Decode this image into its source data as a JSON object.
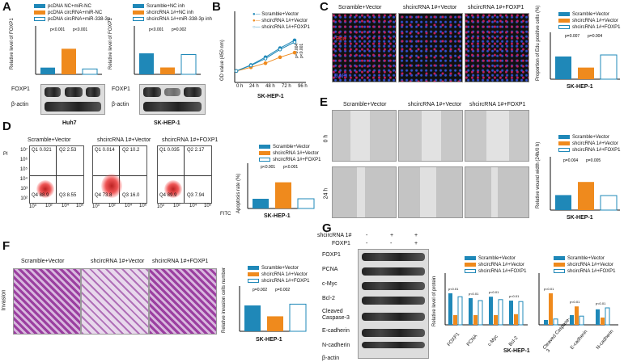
{
  "panel_labels": {
    "A": "A",
    "B": "B",
    "C": "C",
    "D": "D",
    "E": "E",
    "F": "F",
    "G": "G"
  },
  "colors": {
    "blue": "#1f88b8",
    "orange": "#ef8a1d",
    "white": "#ffffff",
    "dark": "#111111",
    "red": "#d62728"
  },
  "panelA": {
    "left": {
      "legend": [
        "pcDNA NC+miR-NC",
        "pcDNA circRNA+miR-NC",
        "pcDNA circRNA+miR-338-3p"
      ],
      "ylabel": "Relative level of FOXP1",
      "sig1": "p<0.001",
      "sig2": "p<0.001",
      "blots": [
        "FOXP1",
        "β-actin"
      ],
      "cell": "Huh7"
    },
    "right": {
      "legend": [
        "Scramble+NC inh",
        "shcircRNA 1#+NC inh",
        "shcircRNA 1#+miR-338-3p inh"
      ],
      "ylabel": "Relative level of FOXP1",
      "sig1": "p<0.001",
      "sig2": "p=0.002",
      "blots": [
        "FOXP1",
        "β-actin"
      ],
      "cell": "SK-HEP-1"
    }
  },
  "panelB": {
    "legend": [
      "Scramble+Vector",
      "shcircRNA 1#+Vector",
      "shcircRNA 1#+FOXP1"
    ],
    "ylabel": "OD value (450 nm)",
    "cell": "SK-HEP-1",
    "sig1": "p=0.004",
    "sig2": "p<0.001"
  },
  "panelC": {
    "groups": [
      "Scramble+Vector",
      "shcircRNA 1#+Vector",
      "shcircRNA 1#+FOXP1"
    ],
    "edu": "Edu",
    "dapi": "DAPI",
    "legend": [
      "Scramble+Vector",
      "shcircRNA 1#+Vector",
      "shcircRNA 1#+FOXP1"
    ],
    "ylabel": "Proportion of Edu positive cells (%)",
    "sig1": "p=0.007",
    "sig2": "p=0.004",
    "cell": "SK-HEP-1"
  },
  "panelD": {
    "groups": [
      "Scramble+Vector",
      "shcircRNA 1#+Vector",
      "shcircRNA 1#+FOXP1"
    ],
    "quads": [
      {
        "q1": "Q1 0.021",
        "q2": "Q2 2.53",
        "q3": "Q3 8.55",
        "q4": "Q4 88.9"
      },
      {
        "q1": "Q1 0.014",
        "q2": "Q2 10.2",
        "q3": "Q3 16.0",
        "q4": "Q4 73.8"
      },
      {
        "q1": "Q1 0.035",
        "q2": "Q2 2.17",
        "q3": "Q3 7.94",
        "q4": "Q4 89.9"
      }
    ],
    "yaxis": "PI",
    "xaxis": "FITC",
    "yticks": [
      "10⁷",
      "10⁶",
      "10⁵",
      "10⁴",
      "10³",
      "10²"
    ],
    "xticks": [
      "10⁰",
      "10²",
      "10⁴",
      "10⁶"
    ],
    "legend": [
      "Scramble+Vector",
      "shcircRNA 1#+Vector",
      "shcircRNA 1#+FOXP1"
    ],
    "ylabel": "Apoptosis rate (%)",
    "sig1": "p<0.001",
    "sig2": "p<0.001",
    "cell": "SK-HEP-1"
  },
  "panelE": {
    "groups": [
      "Scramble+Vector",
      "shcircRNA 1#+Vector",
      "shcircRNA 1#+FOXP1"
    ],
    "rows": [
      "0 h",
      "24 h"
    ],
    "legend": [
      "Scramble+Vector",
      "shcircRNA 1#+Vector",
      "shcircRNA 1#+FOXP1"
    ],
    "ylabel": "Relative wound width (24h/0 h)",
    "sig1": "p=0.004",
    "sig2": "p=0.005",
    "cell": "SK-HEP-1"
  },
  "panelF": {
    "groups": [
      "Scramble+Vector",
      "shcircRNA 1#+Vector",
      "shcircRNA 1#+FOXP1"
    ],
    "row": "Invasion",
    "legend": [
      "Scramble+Vector",
      "shcircRNA 1#+Vector",
      "shcircRNA 1#+FOXP1"
    ],
    "ylabel": "Relative invasion cells number",
    "sig1": "p=0.002",
    "sig2": "p=0.002",
    "cell": "SK-HEP-1"
  },
  "panelG": {
    "header": {
      "row1": "shcircRNA 1#",
      "row2": "FOXP1",
      "signs1": [
        "-",
        "+",
        "+"
      ],
      "signs2": [
        "-",
        "-",
        "+"
      ]
    },
    "blots": [
      "FOXP1",
      "PCNA",
      "c-Myc",
      "Bcl-2",
      "Cleaved Caspase-3",
      "E-cadherin",
      "N-cadherin",
      "β-actin"
    ],
    "legend": [
      "Scramble+Vector",
      "shcircRNA 1#+Vector",
      "shcircRNA 1#+FOXP1"
    ],
    "ylabel": "Relative level of protein",
    "cell": "SK-HEP-1",
    "left_cats": [
      "FOXP1",
      "PCNA",
      "c-Myc",
      "Bcl-2"
    ],
    "right_cats": [
      "Cleaved Caspase-3",
      "E-cadherin",
      "N-cadherin"
    ],
    "sigs": [
      "p<0.01",
      "p<0.01",
      "p<0.01",
      "p<0.01",
      "p<0.01",
      "p<0.01",
      "p<0.01",
      "p<0.01"
    ]
  },
  "chart_data": [
    {
      "type": "bar",
      "title": "",
      "ylabel": "Relative level of FOXP1",
      "categories": [
        "pcDNA NC+miR-NC",
        "pcDNA circRNA+miR-NC",
        "pcDNA circRNA+miR-338-3p"
      ],
      "values": [
        0.25,
        0.95,
        0.2
      ],
      "ylim": [
        0,
        1.5
      ]
    },
    {
      "type": "bar",
      "ylabel": "Relative level of FOXP1",
      "categories": [
        "Scramble+NC inh",
        "shcircRNA 1#+NC inh",
        "shcircRNA 1#+miR-338-3p inh"
      ],
      "values": [
        0.52,
        0.17,
        0.49
      ],
      "ylim": [
        0,
        1.0
      ]
    },
    {
      "type": "line",
      "ylabel": "OD value (450 nm)",
      "x": [
        "0 h",
        "24 h",
        "48 h",
        "72 h",
        "96 h"
      ],
      "ylim": [
        0,
        1.5
      ],
      "series": [
        {
          "name": "Scramble+Vector",
          "values": [
            0.25,
            0.38,
            0.55,
            0.75,
            0.92
          ]
        },
        {
          "name": "shcircRNA 1#+Vector",
          "values": [
            0.25,
            0.33,
            0.42,
            0.55,
            0.65
          ]
        },
        {
          "name": "shcircRNA 1#+FOXP1",
          "values": [
            0.25,
            0.37,
            0.52,
            0.72,
            0.88
          ]
        }
      ]
    },
    {
      "type": "bar",
      "ylabel": "Proportion of Edu positive cells (%)",
      "categories": [
        "Scramble+Vector",
        "shcircRNA 1#+Vector",
        "shcircRNA 1#+FOXP1"
      ],
      "values": [
        45,
        23,
        48
      ],
      "ylim": [
        0,
        80
      ]
    },
    {
      "type": "bar",
      "ylabel": "Apoptosis rate (%)",
      "categories": [
        "Scramble+Vector",
        "shcircRNA 1#+Vector",
        "shcircRNA 1#+FOXP1"
      ],
      "values": [
        10,
        27,
        10
      ],
      "ylim": [
        0,
        40
      ]
    },
    {
      "type": "bar",
      "ylabel": "Relative wound width (24h/0 h)",
      "categories": [
        "Scramble+Vector",
        "shcircRNA 1#+Vector",
        "shcircRNA 1#+FOXP1"
      ],
      "values": [
        0.32,
        0.6,
        0.31
      ],
      "ylim": [
        0,
        1.0
      ]
    },
    {
      "type": "bar",
      "ylabel": "Relative invasion cells number",
      "categories": [
        "Scramble+Vector",
        "shcircRNA 1#+Vector",
        "shcircRNA 1#+FOXP1"
      ],
      "values": [
        1.0,
        0.58,
        1.05
      ],
      "ylim": [
        0,
        1.5
      ]
    },
    {
      "type": "bar",
      "ylabel": "Relative level of protein",
      "categories": [
        "FOXP1",
        "PCNA",
        "c-Myc",
        "Bcl-2"
      ],
      "series": [
        {
          "name": "Scramble+Vector",
          "values": [
            0.65,
            0.55,
            0.58,
            0.5
          ]
        },
        {
          "name": "shcircRNA 1#+Vector",
          "values": [
            0.2,
            0.2,
            0.2,
            0.22
          ]
        },
        {
          "name": "shcircRNA 1#+FOXP1",
          "values": [
            0.58,
            0.5,
            0.52,
            0.48
          ]
        }
      ],
      "ylim": [
        0,
        1.0
      ]
    },
    {
      "type": "bar",
      "ylabel": "Relative level of protein",
      "categories": [
        "Cleaved Caspase-3",
        "E-cadherin",
        "N-cadherin"
      ],
      "series": [
        {
          "name": "Scramble+Vector",
          "values": [
            0.1,
            0.2,
            0.32
          ]
        },
        {
          "name": "shcircRNA 1#+Vector",
          "values": [
            0.65,
            0.38,
            0.15
          ]
        },
        {
          "name": "shcircRNA 1#+FOXP1",
          "values": [
            0.12,
            0.18,
            0.35
          ]
        }
      ],
      "ylim": [
        0,
        1.0
      ]
    }
  ]
}
